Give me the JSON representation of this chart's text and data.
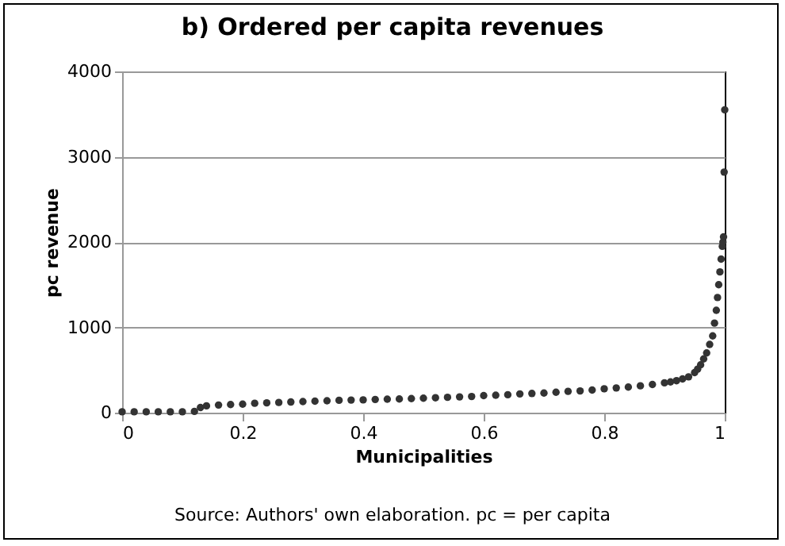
{
  "chart_data": {
    "type": "scatter",
    "title": "b) Ordered per capita revenues",
    "xlabel": "Municipalities",
    "ylabel": "pc revenue",
    "annotations": [
      "Source: Authors' own elaboration. pc = per capita"
    ],
    "x": [
      0,
      0.02,
      0.04,
      0.06,
      0.08,
      0.1,
      0.12,
      0.13,
      0.14,
      0.16,
      0.18,
      0.2,
      0.22,
      0.24,
      0.26,
      0.28,
      0.3,
      0.32,
      0.34,
      0.36,
      0.38,
      0.4,
      0.42,
      0.44,
      0.46,
      0.48,
      0.5,
      0.52,
      0.54,
      0.56,
      0.58,
      0.6,
      0.62,
      0.64,
      0.66,
      0.68,
      0.7,
      0.72,
      0.74,
      0.76,
      0.78,
      0.8,
      0.82,
      0.84,
      0.86,
      0.88,
      0.9,
      0.91,
      0.92,
      0.93,
      0.94,
      0.95,
      0.955,
      0.96,
      0.965,
      0.97,
      0.975,
      0.98,
      0.983,
      0.986,
      0.988,
      0.99,
      0.992,
      0.994,
      0.996,
      0.997,
      0.998,
      0.999,
      1
    ],
    "series": [
      {
        "color": "#333333",
        "values": [
          10,
          10,
          10,
          10,
          10,
          10,
          15,
          60,
          80,
          90,
          95,
          100,
          110,
          115,
          120,
          125,
          130,
          135,
          140,
          145,
          148,
          150,
          155,
          158,
          160,
          165,
          170,
          175,
          180,
          185,
          190,
          200,
          205,
          210,
          220,
          225,
          230,
          240,
          250,
          255,
          265,
          280,
          290,
          300,
          315,
          330,
          350,
          360,
          375,
          395,
          420,
          470,
          510,
          560,
          630,
          700,
          800,
          900,
          1050,
          1200,
          1350,
          1500,
          1650,
          1800,
          1950,
          2000,
          2060,
          2820,
          3550
        ]
      }
    ],
    "xlim": [
      0,
      1
    ],
    "xticks": [
      0,
      0.2,
      0.4,
      0.6,
      0.8,
      1
    ],
    "ylim": [
      0,
      4000
    ],
    "yticks": [
      0,
      1000,
      2000,
      3000,
      4000
    ],
    "grid": "y",
    "marker": "circle"
  }
}
